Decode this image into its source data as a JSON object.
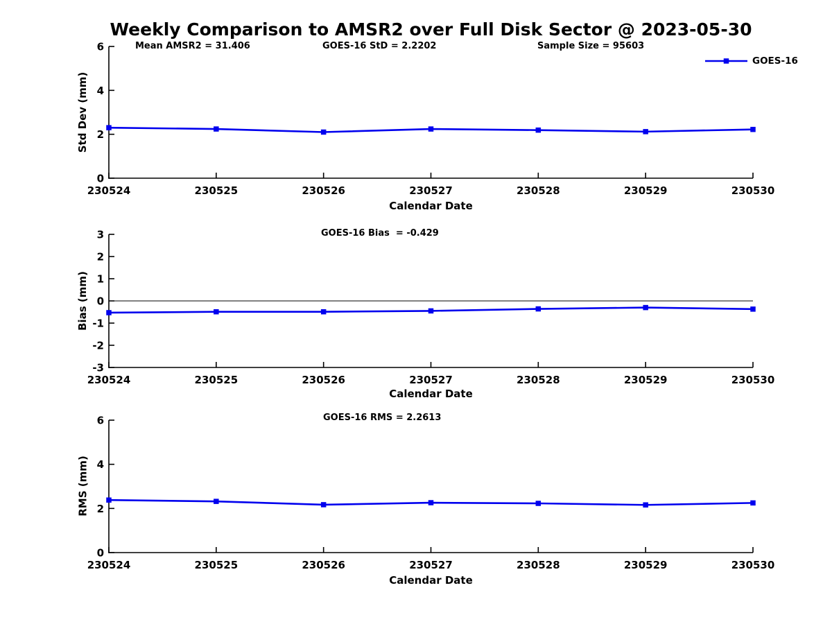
{
  "title": "Weekly Comparison to AMSR2 over Full Disk Sector @ 2023-05-30",
  "legend": {
    "label": "GOES-16",
    "color": "#0000ee"
  },
  "chart_data": [
    {
      "type": "line",
      "title": "",
      "annotations": [
        "Mean AMSR2 = 31.406",
        "GOES-16 StD = 2.2202",
        "Sample Size = 95603"
      ],
      "categories": [
        "230524",
        "230525",
        "230526",
        "230527",
        "230528",
        "230529",
        "230530"
      ],
      "series": [
        {
          "name": "GOES-16",
          "values": [
            2.3,
            2.24,
            2.1,
            2.24,
            2.19,
            2.12,
            2.22
          ]
        }
      ],
      "xlabel": "Calendar Date",
      "ylabel": "Std Dev (mm)",
      "ylim": [
        0,
        6
      ],
      "yticks": [
        0,
        2,
        4,
        6
      ],
      "zero_line": false,
      "grid": false,
      "legend_position": "top-right-outside",
      "marker": "square",
      "line_color": "#0000ee"
    },
    {
      "type": "line",
      "title": "",
      "annotations": [
        "GOES-16 Bias  = -0.429"
      ],
      "categories": [
        "230524",
        "230525",
        "230526",
        "230527",
        "230528",
        "230529",
        "230530"
      ],
      "series": [
        {
          "name": "GOES-16",
          "values": [
            -0.53,
            -0.49,
            -0.49,
            -0.45,
            -0.36,
            -0.3,
            -0.37
          ]
        }
      ],
      "xlabel": "Calendar Date",
      "ylabel": "Bias (mm)",
      "ylim": [
        -3,
        3
      ],
      "yticks": [
        -3,
        -2,
        -1,
        0,
        1,
        2,
        3
      ],
      "zero_line": true,
      "grid": false,
      "marker": "square",
      "line_color": "#0000ee"
    },
    {
      "type": "line",
      "title": "",
      "annotations": [
        "GOES-16 RMS = 2.2613"
      ],
      "categories": [
        "230524",
        "230525",
        "230526",
        "230527",
        "230528",
        "230529",
        "230530"
      ],
      "series": [
        {
          "name": "GOES-16",
          "values": [
            2.38,
            2.32,
            2.17,
            2.26,
            2.23,
            2.16,
            2.25
          ]
        }
      ],
      "xlabel": "Calendar Date",
      "ylabel": "RMS (mm)",
      "ylim": [
        0,
        6
      ],
      "yticks": [
        0,
        2,
        4,
        6
      ],
      "zero_line": false,
      "grid": false,
      "marker": "square",
      "line_color": "#0000ee"
    }
  ]
}
